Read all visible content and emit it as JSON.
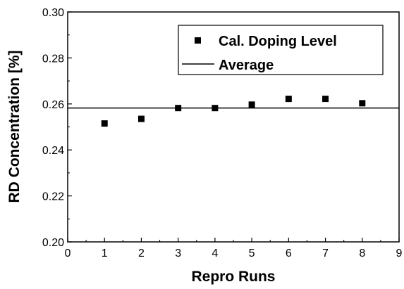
{
  "chart_data": {
    "type": "scatter",
    "xlabel": "Repro Runs",
    "ylabel": "RD Concentration  [%]",
    "xlim": [
      0,
      9
    ],
    "ylim": [
      0.2,
      0.3
    ],
    "x_ticks": [
      0,
      1,
      2,
      3,
      4,
      5,
      6,
      7,
      8,
      9
    ],
    "x_tick_labels": [
      "0",
      "1",
      "2",
      "3",
      "4",
      "5",
      "6",
      "7",
      "8",
      "9"
    ],
    "y_ticks": [
      0.2,
      0.22,
      0.24,
      0.26,
      0.28,
      0.3
    ],
    "y_tick_labels": [
      "0.20",
      "0.22",
      "0.24",
      "0.26",
      "0.28",
      "0.30"
    ],
    "grid": false,
    "legend_position": "top-right",
    "series": [
      {
        "name": "Cal. Doping Level",
        "type": "scatter",
        "marker": "square",
        "color": "#000000",
        "x": [
          1,
          2,
          3,
          4,
          5,
          6,
          7,
          8
        ],
        "y": [
          0.2515,
          0.2535,
          0.2582,
          0.2582,
          0.2597,
          0.2622,
          0.2622,
          0.2603
        ]
      },
      {
        "name": "Average",
        "type": "line",
        "color": "#000000",
        "x": [
          0,
          9
        ],
        "y": [
          0.2582,
          0.2582
        ]
      }
    ]
  }
}
